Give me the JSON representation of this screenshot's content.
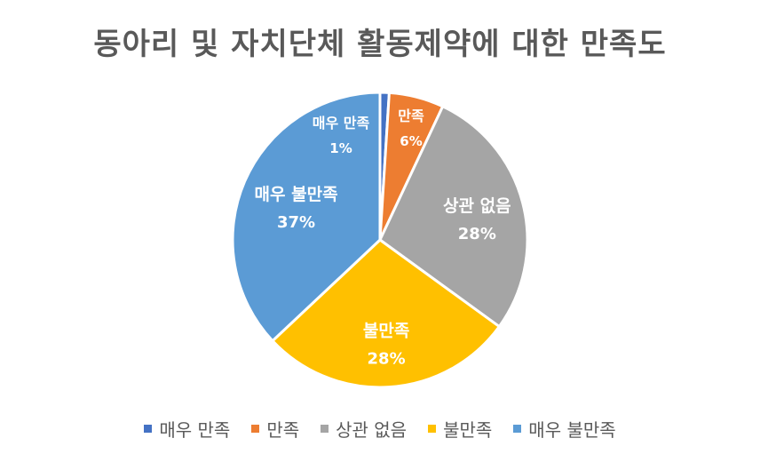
{
  "chart_data": {
    "type": "pie",
    "title": "동아리 및 자치단체 활동제약에 대한 만족도",
    "categories": [
      "매우 만족",
      "만족",
      "상관 없음",
      "불만족",
      "매우 불만족"
    ],
    "values": [
      1,
      6,
      28,
      28,
      37
    ],
    "value_labels": [
      "1%",
      "6%",
      "28%",
      "28%",
      "37%"
    ],
    "colors": [
      "#4472C4",
      "#ED7D31",
      "#A5A5A5",
      "#FFC000",
      "#5B9BD5"
    ],
    "legend_position": "bottom"
  }
}
